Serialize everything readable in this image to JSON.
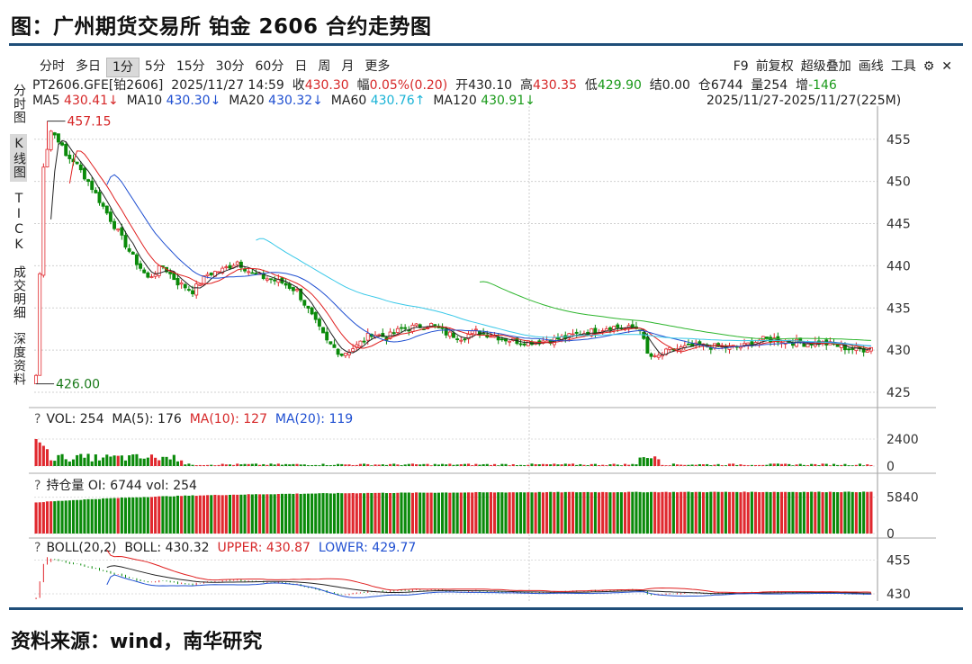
{
  "figure": {
    "title": "图：广州期货交易所 铂金 2606 合约走势图",
    "source": "资料来源：wind，南华研究"
  },
  "toolbar": {
    "periods": [
      "分时",
      "多日",
      "1分",
      "5分",
      "15分",
      "30分",
      "60分",
      "日",
      "周",
      "月",
      "更多"
    ],
    "active": "1分",
    "right_items": [
      "F9",
      "前复权",
      "超级叠加",
      "画线",
      "工具",
      "⚙",
      "✕"
    ]
  },
  "sidebar": {
    "tabs": [
      "分时图",
      "K线图",
      "TICK",
      "成交明细",
      "深度资料"
    ],
    "active": "K线图"
  },
  "quote": {
    "symbol": "PT2606.GFE[铂2606]",
    "datetime": "2025/11/27 14:59",
    "close_label": "收",
    "close": "430.30",
    "change_label": "幅",
    "change": "0.05%(0.20)",
    "open_label": "开",
    "open": "430.10",
    "high_label": "高",
    "high": "430.35",
    "low_label": "低",
    "low": "429.90",
    "settle_label": "结",
    "settle": "0.00",
    "oi_label": "仓",
    "oi": "6744",
    "vol_label": "量",
    "vol": "254",
    "inc_label": "增",
    "inc": "-146"
  },
  "ma_line": {
    "ma5": "MA5",
    "ma5_v": "430.41↓",
    "ma10": "MA10",
    "ma10_v": "430.30↓",
    "ma20": "MA20",
    "ma20_v": "430.32↓",
    "ma60": "MA60",
    "ma60_v": "430.76↑",
    "ma120": "MA120",
    "ma120_v": "430.91↓"
  },
  "range": "2025/11/27-2025/11/27(225M)",
  "subcharts": {
    "vol": {
      "q": "?",
      "label": "VOL: 254",
      "ma5": "MA(5): 176",
      "ma10": "MA(10): 127",
      "ma20": "MA(20): 119"
    },
    "oi": {
      "q": "?",
      "label": "持仓量 OI: 6744 vol: 254"
    },
    "boll": {
      "q": "?",
      "label": "BOLL(20,2)",
      "mid": "BOLL: 430.32",
      "upper": "UPPER: 430.87",
      "lower": "LOWER: 429.77"
    }
  },
  "colors": {
    "up": "#e0282e",
    "down": "#0a8a0a",
    "ma5": "#222222",
    "ma10": "#e02020",
    "ma20": "#1f4fd1",
    "ma60": "#38c8e8",
    "ma120": "#2db52d",
    "rule": "#1f4e79"
  },
  "chart_data": [
    {
      "type": "candlestick",
      "ylim": [
        425,
        457
      ],
      "yticks": [
        425,
        430,
        435,
        440,
        445,
        450,
        455
      ],
      "annotations": {
        "max_label": "457.15",
        "min_label": "426.00"
      },
      "x": "1-minute bars, 225 bars (2025/11/27)",
      "close_path": [
        [
          0,
          426.0
        ],
        [
          2,
          452.0
        ],
        [
          4,
          456.0
        ],
        [
          6,
          455.0
        ],
        [
          8,
          453.0
        ],
        [
          10,
          452.5
        ],
        [
          14,
          450.0
        ],
        [
          18,
          447.0
        ],
        [
          22,
          444.0
        ],
        [
          26,
          441.0
        ],
        [
          30,
          438.5
        ],
        [
          34,
          440.0
        ],
        [
          38,
          438.0
        ],
        [
          42,
          437.0
        ],
        [
          46,
          439.0
        ],
        [
          50,
          439.5
        ],
        [
          54,
          440.5
        ],
        [
          58,
          439.0
        ],
        [
          62,
          438.5
        ],
        [
          66,
          438.0
        ],
        [
          70,
          437.0
        ],
        [
          74,
          434.0
        ],
        [
          78,
          431.0
        ],
        [
          82,
          429.5
        ],
        [
          86,
          430.5
        ],
        [
          90,
          432.0
        ],
        [
          94,
          431.5
        ],
        [
          98,
          432.5
        ],
        [
          102,
          432.8
        ],
        [
          106,
          433.0
        ],
        [
          110,
          432.0
        ],
        [
          114,
          431.5
        ],
        [
          118,
          432.2
        ],
        [
          122,
          431.8
        ],
        [
          126,
          431.3
        ],
        [
          130,
          431.0
        ],
        [
          134,
          431.0
        ],
        [
          138,
          431.2
        ],
        [
          142,
          431.5
        ],
        [
          146,
          432.0
        ],
        [
          150,
          432.3
        ],
        [
          154,
          432.8
        ],
        [
          158,
          432.6
        ],
        [
          162,
          432.6
        ],
        [
          164,
          429.5
        ],
        [
          166,
          429.0
        ],
        [
          170,
          430.0
        ],
        [
          174,
          430.3
        ],
        [
          178,
          430.5
        ],
        [
          182,
          430.4
        ],
        [
          186,
          430.3
        ],
        [
          190,
          430.5
        ],
        [
          194,
          431.2
        ],
        [
          198,
          431.3
        ],
        [
          202,
          431.0
        ],
        [
          206,
          430.8
        ],
        [
          210,
          430.9
        ],
        [
          214,
          430.6
        ],
        [
          218,
          430.2
        ],
        [
          222,
          430.1
        ],
        [
          224,
          430.3
        ]
      ]
    },
    {
      "type": "bar",
      "name": "VOL",
      "yticks": [
        0,
        2400
      ]
    },
    {
      "type": "bar",
      "name": "OI",
      "yticks": [
        0,
        5840
      ]
    },
    {
      "type": "line",
      "name": "BOLL",
      "yticks": [
        430,
        455
      ]
    }
  ]
}
